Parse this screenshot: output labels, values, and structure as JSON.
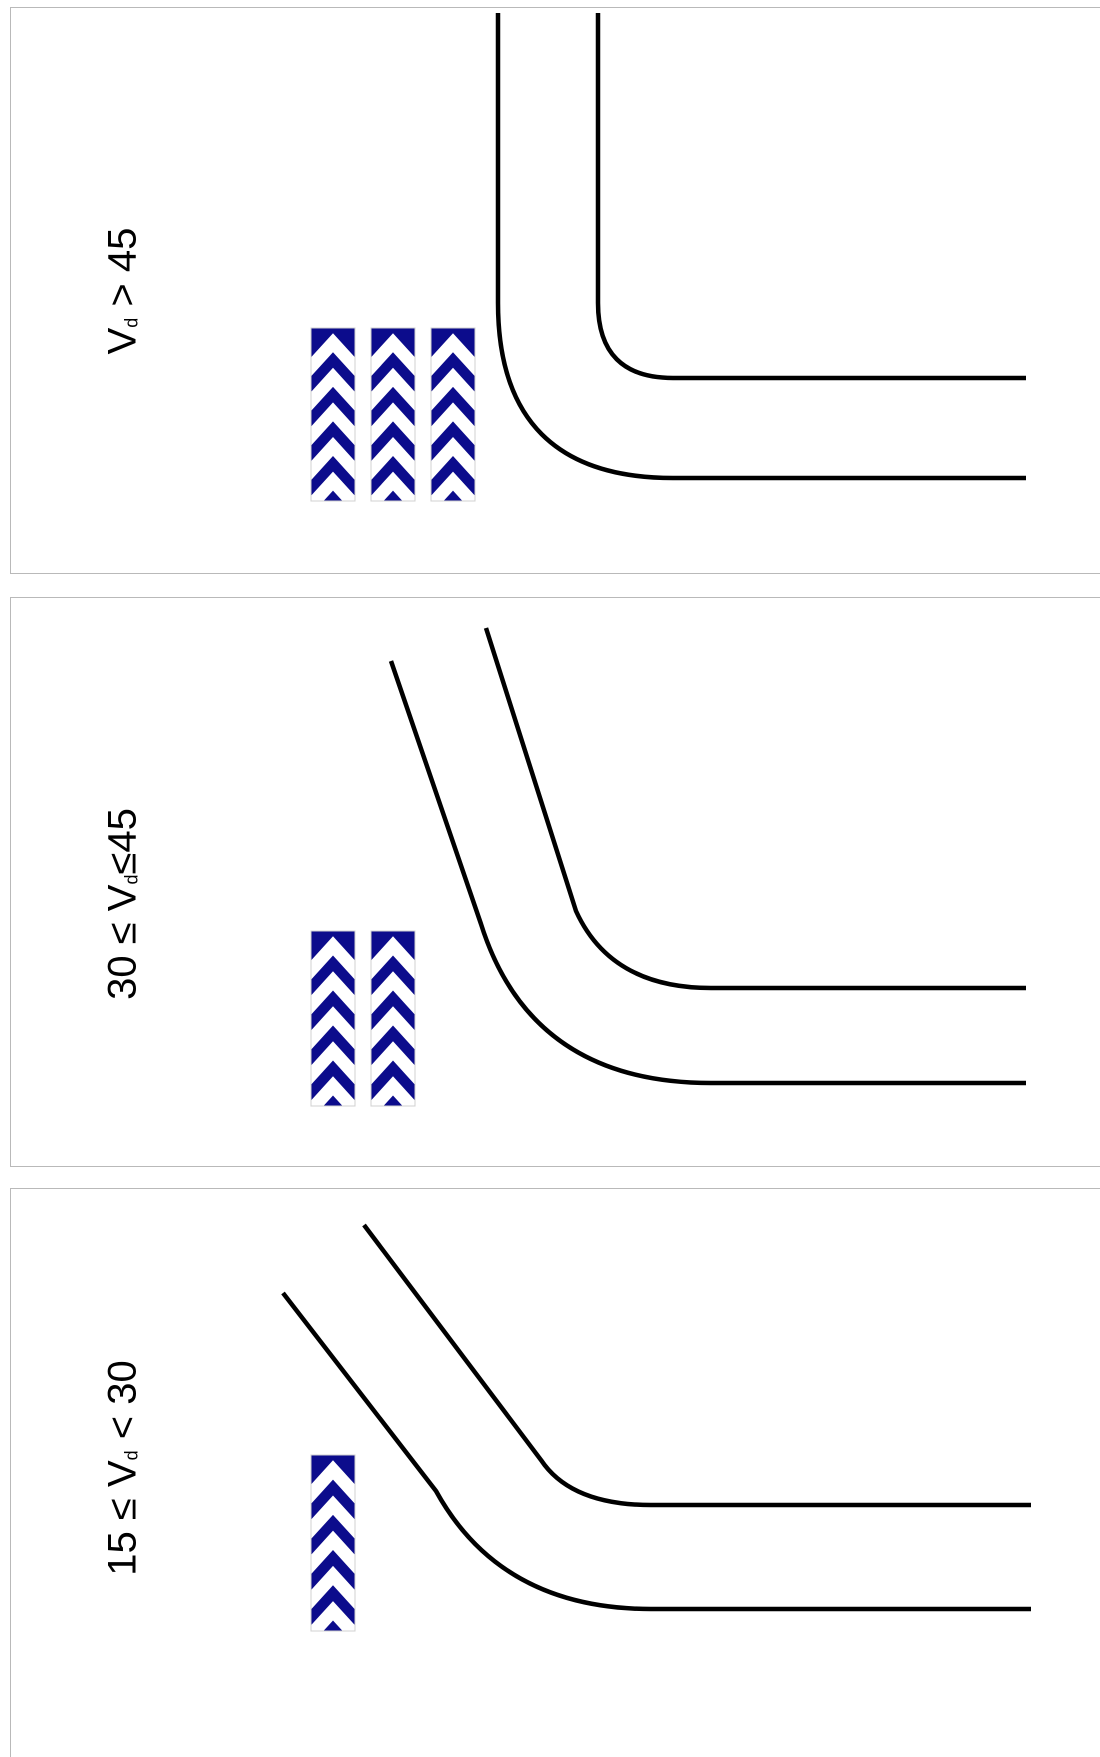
{
  "panels": [
    {
      "label_prefix": "V",
      "label_sub": "d",
      "label_suffix": " > 45",
      "chevron_columns": 3
    },
    {
      "label_prefix": "30 ≤ V",
      "label_sub": "d",
      "label_suffix": "≤45",
      "chevron_columns": 2
    },
    {
      "label_prefix": "15 ≤ V",
      "label_sub": "d",
      "label_suffix": " < 30",
      "chevron_columns": 1
    }
  ],
  "colors": {
    "chevron": "#0c0c8c",
    "road_edge": "#000000",
    "panel_border": "#b9b9b9"
  }
}
